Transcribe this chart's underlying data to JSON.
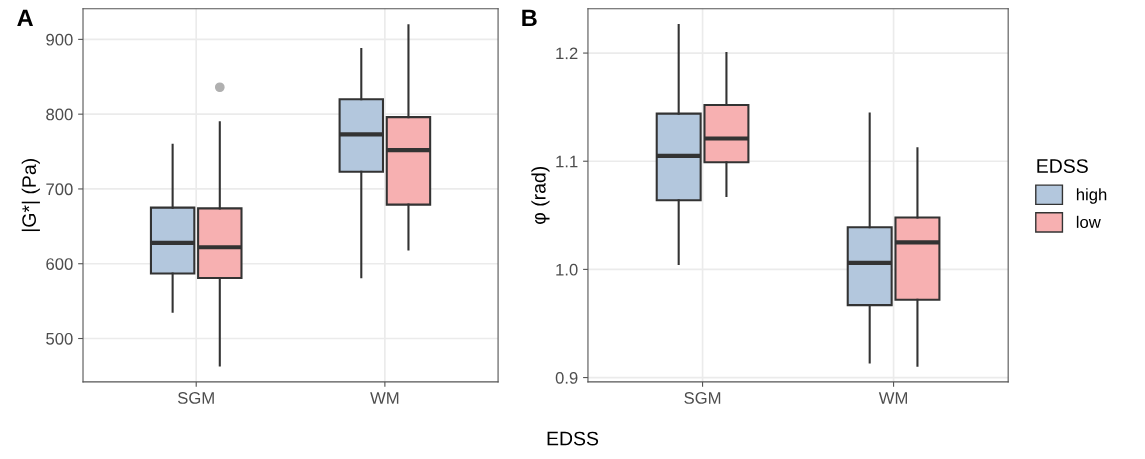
{
  "chart_data": [
    {
      "type": "box",
      "title": "A",
      "xlabel": "EDSS",
      "ylabel": "|G*| (Pa)",
      "categories": [
        "SGM",
        "WM"
      ],
      "ylim": [
        442,
        941
      ],
      "yticks": [
        500,
        600,
        700,
        800,
        900
      ],
      "grid": true,
      "series": [
        {
          "color": "#b3c7dd",
          "boxes": [
            {
              "low": 536,
              "q1": 587,
              "median": 628,
              "q3": 675,
              "high": 759
            },
            {
              "low": 582,
              "q1": 723,
              "median": 773,
              "q3": 820,
              "high": 887
            }
          ]
        },
        {
          "color": "#f7b0b1",
          "boxes": [
            {
              "low": 464,
              "q1": 581,
              "median": 622,
              "q3": 674,
              "high": 789,
              "outliers": [
                836
              ]
            },
            {
              "low": 619,
              "q1": 679,
              "median": 752,
              "q3": 796,
              "high": 919
            }
          ]
        }
      ]
    },
    {
      "type": "box",
      "title": "B",
      "ylabel": "φ (rad)",
      "categories": [
        "SGM",
        "WM"
      ],
      "ylim": [
        0.896,
        1.241
      ],
      "yticks": [
        {
          "value": 0.9,
          "label": "0.9"
        },
        {
          "value": 1.0,
          "label": "1.0"
        },
        {
          "value": 1.1,
          "label": "1.1"
        },
        {
          "value": 1.2,
          "label": "1.2"
        }
      ],
      "grid": true,
      "legend": "right",
      "legend_title": "EDSS",
      "series": [
        {
          "name": "high",
          "color": "#b3c7dd",
          "boxes": [
            {
              "low": 1.005,
              "q1": 1.064,
              "median": 1.105,
              "q3": 1.144,
              "high": 1.226
            },
            {
              "low": 0.914,
              "q1": 0.967,
              "median": 1.006,
              "q3": 1.039,
              "high": 1.144
            }
          ]
        },
        {
          "name": "low",
          "color": "#f7b0b1",
          "boxes": [
            {
              "low": 1.068,
              "q1": 1.099,
              "median": 1.121,
              "q3": 1.152,
              "high": 1.2
            },
            {
              "low": 0.911,
              "q1": 0.972,
              "median": 1.025,
              "q3": 1.048,
              "high": 1.112
            }
          ]
        }
      ]
    }
  ]
}
